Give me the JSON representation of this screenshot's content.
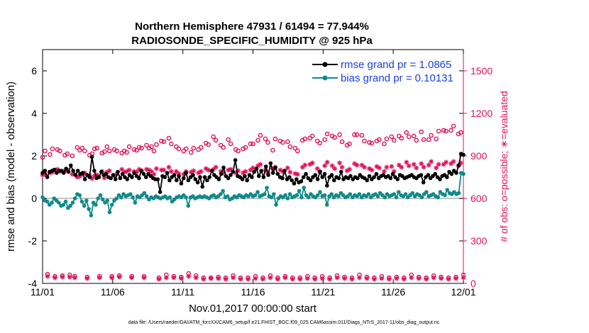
{
  "chart_data": {
    "type": "line",
    "title_line1": "Northern Hemisphere 47931 / 61494 = 77.944%",
    "title_line2": "RADIOSONDE_SPECIFIC_HUMIDITY @ 925 hPa",
    "xlabel": "Nov.01,2017 00:00:00 start",
    "ylabel": "rmse and bias (model - observation)",
    "y2label": "# of obs: o=possible; ∗=evaluated",
    "footer": "data file: /Users/raeder/DAI/ATM_forcXX/CAM6_setup/f.e21.FHIST_BGC.f09_025.CAM6assim.011/Diags_NTrS_2017-11/obs_diag_output.nc",
    "x_ticks": [
      "11/01",
      "11/06",
      "11/11",
      "11/16",
      "11/21",
      "11/26",
      "12/01"
    ],
    "x_range_days": [
      0,
      30
    ],
    "ylim": [
      -4,
      7
    ],
    "y_ticks": [
      "-4",
      "-2",
      "0",
      "2",
      "4",
      "6"
    ],
    "y2lim": [
      0,
      1650
    ],
    "y2_ticks": [
      "0",
      "300",
      "600",
      "900",
      "1200",
      "1500"
    ],
    "colors": {
      "rmse": "#000000",
      "bias": "#0f8a8a",
      "obs": "#e0105a",
      "legend_text": "#1a40e0",
      "zero_line": "#b0b0b0"
    },
    "legend": [
      {
        "label": "rmse grand pr = 1.0865",
        "series": "rmse"
      },
      {
        "label": "bias grand pr = 0.10131",
        "series": "bias"
      }
    ],
    "series": [
      {
        "name": "rmse",
        "axis": "left",
        "values": [
          1.2,
          1.3,
          1.0,
          1.25,
          1.3,
          1.35,
          1.2,
          1.3,
          1.3,
          1.2,
          1.4,
          1.25,
          1.55,
          1.3,
          1.1,
          1.3,
          1.15,
          1.2,
          0.9,
          1.1,
          1.0,
          1.95,
          1.3,
          0.95,
          1.0,
          1.25,
          1.1,
          1.15,
          1.0,
          0.95,
          1.1,
          0.9,
          1.25,
          0.95,
          1.15,
          1.0,
          0.9,
          1.1,
          1.0,
          1.2,
          1.05,
          0.95,
          1.3,
          1.15,
          1.0,
          1.15,
          1.05,
          0.95,
          0.9,
          0.9,
          0.3,
          1.05,
          1.0,
          1.2,
          0.85,
          1.0,
          1.1,
          0.85,
          1.05,
          0.7,
          0.95,
          1.2,
          0.85,
          1.0,
          1.1,
          0.9,
          0.75,
          1.0,
          0.55,
          1.0,
          0.85,
          1.0,
          1.3,
          1.1,
          1.0,
          0.9,
          1.15,
          1.45,
          1.05,
          0.95,
          1.1,
          1.25,
          1.8,
          1.05,
          1.0,
          0.9,
          1.05,
          0.85,
          1.1,
          1.0,
          1.25,
          1.4,
          1.05,
          1.3,
          1.0,
          1.5,
          1.1,
          1.65,
          1.2,
          1.45,
          1.15,
          1.0,
          0.95,
          1.3,
          0.9,
          1.0,
          0.85,
          0.7,
          0.9,
          0.75,
          0.8,
          1.0,
          1.15,
          0.95,
          0.85,
          1.0,
          1.1,
          0.9,
          1.25,
          1.0,
          1.15,
          0.6,
          1.0,
          1.1,
          0.85,
          1.0,
          0.95,
          1.25,
          0.9,
          1.0,
          0.95,
          1.05,
          0.9,
          1.0,
          0.95,
          1.1,
          1.0,
          0.95,
          0.85,
          1.05,
          0.9,
          1.0,
          1.15,
          0.95,
          1.05,
          1.1,
          1.0,
          1.05,
          0.95,
          1.15,
          1.0,
          0.9,
          1.1,
          1.05,
          0.95,
          1.0,
          1.05,
          1.1,
          1.0,
          0.95,
          1.05,
          1.1,
          0.75,
          1.0,
          1.1,
          0.95,
          1.05,
          1.15,
          1.0,
          0.9,
          1.05,
          1.1,
          1.0,
          1.25,
          1.15,
          1.3,
          1.2,
          1.55,
          2.1,
          2.05
        ]
      },
      {
        "name": "bias",
        "axis": "left",
        "values": [
          0.05,
          -0.1,
          -0.15,
          -0.3,
          -0.2,
          0.0,
          -0.1,
          -0.2,
          -0.35,
          -0.3,
          -0.15,
          -0.45,
          -0.35,
          -0.2,
          0.0,
          0.2,
          0.15,
          -0.15,
          -0.35,
          -0.1,
          -0.5,
          -0.8,
          -0.2,
          -0.3,
          0.0,
          0.15,
          -0.05,
          -0.2,
          -0.1,
          -0.65,
          -0.3,
          -0.1,
          0.0,
          0.15,
          0.05,
          0.2,
          0.1,
          0.15,
          0.2,
          0.05,
          -0.2,
          0.1,
          0.05,
          0.15,
          0.25,
          0.1,
          -0.05,
          0.05,
          0.0,
          0.1,
          0.05,
          0.0,
          0.05,
          0.1,
          0.0,
          0.05,
          -0.15,
          -0.05,
          0.05,
          0.1,
          0.05,
          0.15,
          0.05,
          -0.35,
          0.05,
          0.1,
          0.0,
          0.05,
          0.1,
          0.05,
          0.1,
          0.05,
          0.0,
          0.1,
          0.15,
          0.05,
          0.1,
          0.2,
          0.35,
          0.05,
          0.1,
          -0.05,
          0.0,
          0.1,
          0.05,
          0.15,
          0.1,
          0.05,
          0.15,
          0.1,
          0.2,
          0.1,
          0.15,
          0.3,
          0.1,
          0.15,
          0.2,
          0.5,
          0.1,
          0.05,
          0.2,
          -0.3,
          0.0,
          0.1,
          0.05,
          0.15,
          0.0,
          0.2,
          0.05,
          0.1,
          0.15,
          0.35,
          0.05,
          0.5,
          0.15,
          0.05,
          0.2,
          0.1,
          0.05,
          0.15,
          0.3,
          0.1,
          0.15,
          -0.3,
          0.1,
          0.2,
          0.05,
          0.15,
          0.1,
          0.25,
          0.15,
          0.05,
          0.1,
          0.2,
          0.05,
          0.15,
          0.1,
          0.2,
          0.05,
          0.15,
          0.1,
          0.2,
          0.05,
          0.15,
          0.2,
          0.1,
          0.25,
          0.15,
          0.05,
          0.2,
          0.1,
          0.15,
          0.2,
          0.05,
          0.3,
          0.15,
          0.1,
          0.2,
          0.05,
          0.15,
          0.25,
          0.1,
          0.2,
          0.15,
          0.05,
          0.2,
          0.3,
          0.1,
          0.15,
          0.2,
          0.1,
          0.05,
          0.3,
          0.2,
          0.15,
          0.4,
          0.25,
          0.2,
          0.3,
          0.2,
          0.25,
          1.2,
          1.15
        ]
      },
      {
        "name": "obs_possible",
        "axis": "right",
        "values": [
          890,
          935,
          65,
          910,
          950,
          50,
          945,
          935,
          55,
          905,
          915,
          60,
          900,
          50,
          960,
          940,
          955,
          935,
          45,
          905,
          915,
          950,
          955,
          50,
          920,
          930,
          965,
          935,
          50,
          945,
          935,
          55,
          920,
          935,
          925,
          965,
          50,
          945,
          940,
          960,
          955,
          50,
          975,
          955,
          965,
          935,
          980,
          40,
          1005,
          1000,
          60,
          1025,
          985,
          50,
          965,
          950,
          45,
          935,
          950,
          70,
          925,
          955,
          55,
          945,
          960,
          40,
          990,
          980,
          40,
          1035,
          1010,
          45,
          975,
          960,
          40,
          1015,
          985,
          55,
          945,
          935,
          40,
          950,
          960,
          40,
          985,
          985,
          50,
          1010,
          1045,
          40,
          1020,
          995,
          55,
          940,
          1020,
          40,
          1005,
          995,
          50,
          1000,
          965,
          40,
          955,
          935,
          40,
          1010,
          1020,
          50,
          1025,
          1040,
          40,
          1005,
          990,
          50,
          1015,
          1055,
          40,
          1040,
          1030,
          55,
          1050,
          1000,
          45,
          975,
          985,
          40,
          1050,
          1050,
          60,
          1045,
          1005,
          45,
          995,
          990,
          40,
          1005,
          1015,
          50,
          985,
          1020,
          40,
          1035,
          1010,
          45,
          1040,
          1025,
          40,
          1065,
          1035,
          60,
          1040,
          1010,
          45,
          1070,
          1015,
          40,
          1015,
          1045,
          55,
          1020,
          1075,
          45,
          1080,
          1075,
          40,
          1080,
          1110,
          45,
          1055,
          1065,
          60
        ]
      },
      {
        "name": "obs_evaluated",
        "axis": "right",
        "values": [
          765,
          770,
          50,
          780,
          785,
          40,
          805,
          790,
          45,
          795,
          800,
          45,
          770,
          40,
          750,
          755,
          770,
          780,
          35,
          760,
          740,
          760,
          765,
          40,
          790,
          745,
          785,
          795,
          40,
          760,
          770,
          45,
          805,
          785,
          790,
          800,
          40,
          790,
          785,
          805,
          795,
          40,
          805,
          800,
          790,
          770,
          810,
          30,
          800,
          800,
          40,
          820,
          790,
          40,
          790,
          775,
          35,
          770,
          790,
          50,
          785,
          795,
          40,
          780,
          790,
          30,
          810,
          800,
          35,
          805,
          820,
          35,
          790,
          780,
          30,
          800,
          805,
          40,
          780,
          795,
          30,
          780,
          790,
          30,
          800,
          815,
          35,
          830,
          840,
          30,
          800,
          780,
          40,
          810,
          820,
          30,
          800,
          790,
          40,
          815,
          785,
          30,
          775,
          770,
          30,
          820,
          835,
          35,
          840,
          850,
          30,
          810,
          790,
          35,
          830,
          855,
          30,
          830,
          810,
          40,
          850,
          820,
          35,
          795,
          805,
          30,
          845,
          835,
          40,
          835,
          820,
          35,
          810,
          800,
          30,
          825,
          815,
          35,
          790,
          820,
          30,
          825,
          790,
          35,
          835,
          820,
          30,
          855,
          830,
          40,
          840,
          815,
          35,
          845,
          820,
          30,
          835,
          860,
          40,
          815,
          840,
          35,
          840,
          855,
          30,
          845,
          860,
          35,
          830,
          850,
          40
        ]
      }
    ]
  }
}
